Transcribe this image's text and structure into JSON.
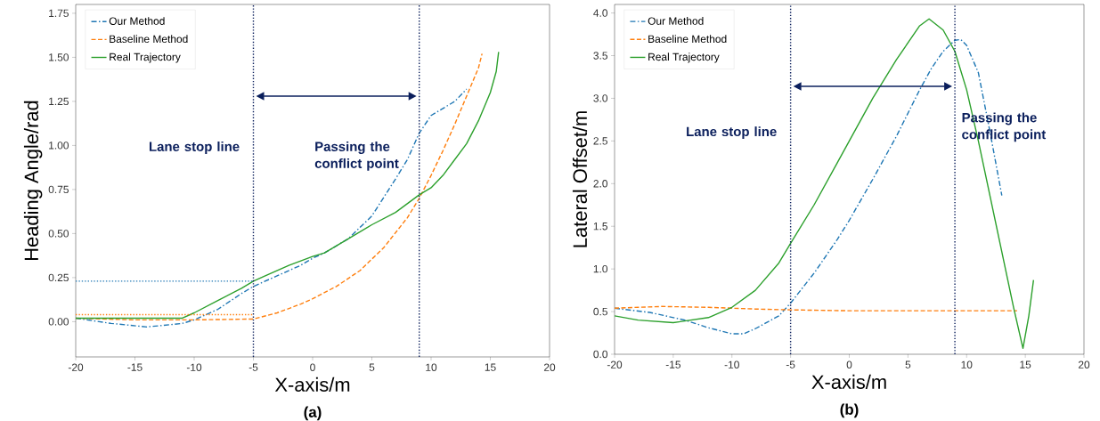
{
  "chart_data": [
    {
      "type": "line",
      "xlabel": "X-axis/m",
      "ylabel": "Heading Angle/rad",
      "annotations": [
        "(a)"
      ],
      "xlim": [
        -20,
        20
      ],
      "ylim": [
        -0.2,
        1.8
      ],
      "xticks": [
        -20,
        -15,
        -10,
        -5,
        0,
        5,
        10,
        15,
        20
      ],
      "yticks": [
        {
          "value": 0,
          "label": "0.00"
        },
        {
          "value": 0.25,
          "label": "0.25"
        },
        {
          "value": 0.5,
          "label": "0.50"
        },
        {
          "value": 0.75,
          "label": "0.75"
        },
        {
          "value": 1,
          "label": "1.00"
        },
        {
          "value": 1.25,
          "label": "1.25"
        },
        {
          "value": 1.5,
          "label": "1.50"
        },
        {
          "value": 1.75,
          "label": "1.75"
        }
      ],
      "legend": "top left",
      "series": [
        {
          "name": "Our Method",
          "color": "#1f77b4",
          "line_style": "dashdot",
          "x": [
            -20,
            -17,
            -14,
            -11,
            -10,
            -8,
            -6,
            -5,
            -3,
            -1,
            0,
            1,
            3,
            5,
            7,
            8,
            9,
            10,
            11,
            12,
            13
          ],
          "values": [
            0.02,
            -0.01,
            -0.03,
            -0.01,
            0.01,
            0.07,
            0.16,
            0.2,
            0.26,
            0.32,
            0.36,
            0.39,
            0.47,
            0.6,
            0.81,
            0.92,
            1.07,
            1.17,
            1.21,
            1.25,
            1.32
          ]
        },
        {
          "name": "Baseline Method",
          "color": "#ff7f0e",
          "line_style": "dashed",
          "x": [
            -20,
            -15,
            -10,
            -5,
            -3,
            -1,
            0,
            2,
            4,
            6,
            8,
            9,
            10,
            11,
            12,
            13,
            14,
            14.3
          ],
          "values": [
            0.02,
            0.01,
            0.01,
            0.015,
            0.05,
            0.1,
            0.13,
            0.2,
            0.29,
            0.42,
            0.59,
            0.7,
            0.83,
            0.97,
            1.12,
            1.28,
            1.44,
            1.52
          ]
        },
        {
          "name": "Real Trajectory",
          "color": "#2ca02c",
          "line_style": "solid",
          "x": [
            -20,
            -15,
            -11,
            -10,
            -8,
            -6,
            -5,
            -4,
            -2,
            0,
            1,
            3,
            5,
            7,
            9,
            10,
            11,
            12,
            13,
            14,
            15,
            15.5,
            15.7
          ],
          "values": [
            0.02,
            0.02,
            0.02,
            0.05,
            0.12,
            0.19,
            0.23,
            0.26,
            0.32,
            0.37,
            0.39,
            0.47,
            0.55,
            0.62,
            0.72,
            0.76,
            0.83,
            0.92,
            1.01,
            1.14,
            1.3,
            1.42,
            1.53
          ]
        },
        {
          "color": "#1f77b4",
          "line_style": "dotted",
          "x": [
            -20,
            -5
          ],
          "values": [
            0.23,
            0.23
          ]
        },
        {
          "color": "#ff7f0e",
          "line_style": "dotted",
          "x": [
            -20,
            -5
          ],
          "values": [
            0.04,
            0.04
          ]
        }
      ],
      "ref_lines": [
        {
          "axis": "x",
          "value": -5,
          "label": "Lane stop line",
          "color": "#0b1f5c",
          "line_style": "dotted"
        },
        {
          "axis": "x",
          "value": 9,
          "label": "Passing the conflict point",
          "color": "#0b1f5c",
          "line_style": "dotted"
        }
      ]
    },
    {
      "type": "line",
      "xlabel": "X-axis/m",
      "ylabel": "Lateral Offset/m",
      "annotations": [
        "(b)"
      ],
      "xlim": [
        -20,
        20
      ],
      "ylim": [
        0,
        4.1
      ],
      "xticks": [
        -20,
        -15,
        -10,
        -5,
        0,
        5,
        10,
        15,
        20
      ],
      "yticks": [
        {
          "value": 0,
          "label": "0.0"
        },
        {
          "value": 0.5,
          "label": "0.5"
        },
        {
          "value": 1,
          "label": "1.0"
        },
        {
          "value": 1.5,
          "label": "1.5"
        },
        {
          "value": 2,
          "label": "2.0"
        },
        {
          "value": 2.5,
          "label": "2.5"
        },
        {
          "value": 3,
          "label": "3.0"
        },
        {
          "value": 3.5,
          "label": "3.5"
        },
        {
          "value": 4,
          "label": "4.0"
        }
      ],
      "legend": "top left",
      "series": [
        {
          "name": "Our Method",
          "color": "#1f77b4",
          "line_style": "dashdot",
          "x": [
            -20,
            -17,
            -14,
            -12,
            -10,
            -9,
            -8,
            -6,
            -5,
            -3,
            -1,
            0,
            2,
            4,
            6,
            7,
            8,
            9,
            9.5,
            10,
            11,
            12,
            13
          ],
          "values": [
            0.54,
            0.49,
            0.4,
            0.31,
            0.24,
            0.24,
            0.3,
            0.45,
            0.6,
            0.95,
            1.35,
            1.57,
            2.05,
            2.55,
            3.1,
            3.35,
            3.55,
            3.68,
            3.69,
            3.62,
            3.3,
            2.6,
            1.86
          ]
        },
        {
          "name": "Baseline Method",
          "color": "#ff7f0e",
          "line_style": "dashed",
          "x": [
            -20,
            -16,
            -12,
            -8,
            -5,
            0,
            5,
            10,
            14.3
          ],
          "values": [
            0.54,
            0.56,
            0.55,
            0.53,
            0.52,
            0.51,
            0.51,
            0.51,
            0.51
          ]
        },
        {
          "name": "Real Trajectory",
          "color": "#2ca02c",
          "line_style": "solid",
          "x": [
            -20,
            -18,
            -15,
            -12,
            -10,
            -8,
            -6,
            -5,
            -3,
            -1,
            0,
            2,
            4,
            6,
            6.8,
            8,
            9,
            10,
            11,
            12,
            13,
            14,
            14.8,
            15.3,
            15.7
          ],
          "values": [
            0.45,
            0.4,
            0.37,
            0.43,
            0.55,
            0.75,
            1.07,
            1.3,
            1.75,
            2.25,
            2.5,
            3.0,
            3.45,
            3.85,
            3.93,
            3.8,
            3.55,
            3.1,
            2.5,
            1.85,
            1.2,
            0.55,
            0.07,
            0.45,
            0.87
          ]
        }
      ],
      "ref_lines": [
        {
          "axis": "x",
          "value": -5,
          "label": "Lane stop line",
          "color": "#0b1f5c",
          "line_style": "dotted"
        },
        {
          "axis": "x",
          "value": 9,
          "label": "Passing the conflict point",
          "color": "#0b1f5c",
          "line_style": "dotted"
        }
      ]
    }
  ]
}
